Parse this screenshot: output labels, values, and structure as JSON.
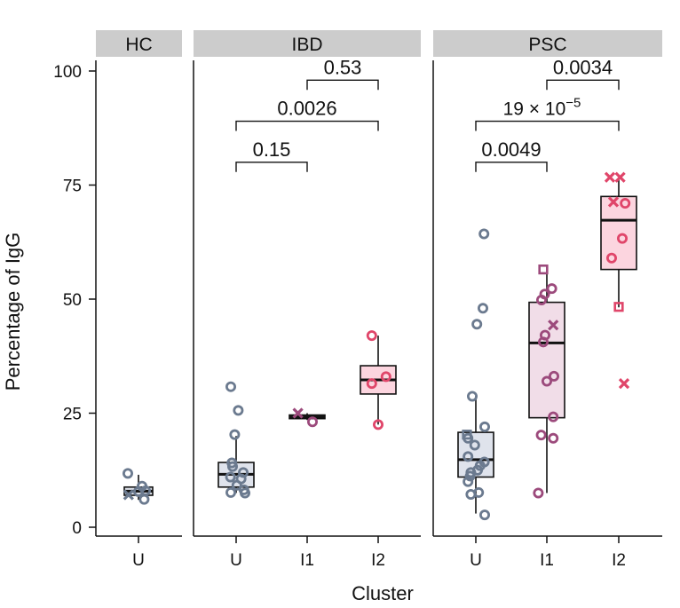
{
  "chart_data": {
    "type": "box",
    "ylabel": "Percentage of IgG",
    "xlabel": "Cluster",
    "ylim": [
      0,
      100
    ],
    "yticks": [
      0,
      25,
      50,
      75,
      100
    ],
    "colors": {
      "U": "#6b7a8f",
      "I1": "#9c4a7c",
      "I2": "#e0466a",
      "U_fill": "#dfe3ec",
      "I1_fill": "#f1dde8",
      "I2_fill": "#fcd5df",
      "strip": "#cccccc"
    },
    "panels": [
      {
        "name": "HC",
        "groups": [
          {
            "cluster": "U",
            "box": {
              "q1": 7,
              "median": 7.9,
              "q3": 8.8,
              "wlow": 6,
              "whigh": 11.5
            },
            "points": [
              {
                "y": 11.8,
                "m": "o",
                "j": -0.3
              },
              {
                "y": 7.1,
                "m": "x",
                "j": -0.28
              },
              {
                "y": 6.1,
                "m": "o",
                "j": 0.16
              },
              {
                "y": 8.0,
                "m": "o",
                "j": 0.2
              },
              {
                "y": 9.0,
                "m": "o",
                "j": 0.1
              },
              {
                "y": 7.8,
                "m": "o",
                "j": 0.0
              }
            ]
          }
        ],
        "brackets": []
      },
      {
        "name": "IBD",
        "groups": [
          {
            "cluster": "U",
            "box": {
              "q1": 8.8,
              "median": 11.6,
              "q3": 14.2,
              "wlow": 7.5,
              "whigh": 20
            },
            "points": [
              {
                "y": 30.8,
                "m": "o",
                "j": -0.15
              },
              {
                "y": 25.6,
                "m": "o",
                "j": 0.06
              },
              {
                "y": 20.3,
                "m": "o",
                "j": -0.04
              },
              {
                "y": 14.1,
                "m": "o",
                "j": -0.12
              },
              {
                "y": 13.3,
                "m": "o",
                "j": -0.1
              },
              {
                "y": 12.0,
                "m": "o",
                "j": 0.2
              },
              {
                "y": 11.0,
                "m": "o",
                "j": -0.16
              },
              {
                "y": 10.6,
                "m": "o",
                "j": 0.14
              },
              {
                "y": 9.2,
                "m": "o",
                "j": 0.02
              },
              {
                "y": 8.2,
                "m": "o",
                "j": 0.22
              },
              {
                "y": 7.6,
                "m": "o",
                "j": -0.15
              },
              {
                "y": 7.5,
                "m": "o",
                "j": 0.25
              }
            ]
          },
          {
            "cluster": "I1",
            "box": {
              "q1": 23.8,
              "median": 24.2,
              "q3": 24.6,
              "wlow": 23.5,
              "whigh": 25
            },
            "points": [
              {
                "y": 25.0,
                "m": "x",
                "j": -0.26
              },
              {
                "y": 23.1,
                "m": "o",
                "j": 0.15
              }
            ]
          },
          {
            "cluster": "I2",
            "box": {
              "q1": 29.2,
              "median": 32.3,
              "q3": 35.4,
              "wlow": 22.5,
              "whigh": 42
            },
            "points": [
              {
                "y": 42.0,
                "m": "o",
                "j": -0.18
              },
              {
                "y": 33.0,
                "m": "o",
                "j": 0.22
              },
              {
                "y": 31.5,
                "m": "o",
                "j": -0.18
              },
              {
                "y": 22.5,
                "m": "o",
                "j": 0.0
              }
            ]
          }
        ],
        "brackets": [
          {
            "from": "U",
            "to": "I1",
            "y": 80,
            "label": "0.15"
          },
          {
            "from": "U",
            "to": "I2",
            "y": 89,
            "label": "0.0026"
          },
          {
            "from": "I1",
            "to": "I2",
            "y": 98,
            "label": "0.53"
          }
        ]
      },
      {
        "name": "PSC",
        "groups": [
          {
            "cluster": "U",
            "box": {
              "q1": 11,
              "median": 14.8,
              "q3": 20.8,
              "wlow": 3,
              "whigh": 28.8
            },
            "points": [
              {
                "y": 64.3,
                "m": "o",
                "j": 0.23
              },
              {
                "y": 48.0,
                "m": "o",
                "j": 0.2
              },
              {
                "y": 44.5,
                "m": "o",
                "j": 0.03
              },
              {
                "y": 28.7,
                "m": "o",
                "j": -0.1
              },
              {
                "y": 22.0,
                "m": "o",
                "j": 0.25
              },
              {
                "y": 20.3,
                "m": "s",
                "j": -0.25
              },
              {
                "y": 19.5,
                "m": "o",
                "j": -0.22
              },
              {
                "y": 18.0,
                "m": "o",
                "j": -0.03
              },
              {
                "y": 15.5,
                "m": "o",
                "j": -0.22
              },
              {
                "y": 14.3,
                "m": "o",
                "j": 0.24
              },
              {
                "y": 13.5,
                "m": "o",
                "j": 0.12
              },
              {
                "y": 12.5,
                "m": "o",
                "j": 0.05
              },
              {
                "y": 12.0,
                "m": "o",
                "j": -0.14
              },
              {
                "y": 11.2,
                "m": "o",
                "j": -0.16
              },
              {
                "y": 10.0,
                "m": "o",
                "j": -0.22
              },
              {
                "y": 7.6,
                "m": "o",
                "j": 0.08
              },
              {
                "y": 7.2,
                "m": "o",
                "j": -0.14
              },
              {
                "y": 2.7,
                "m": "o",
                "j": 0.25
              }
            ]
          },
          {
            "cluster": "I1",
            "box": {
              "q1": 24,
              "median": 40.4,
              "q3": 49.3,
              "wlow": 7.5,
              "whigh": 56
            },
            "points": [
              {
                "y": 56.5,
                "m": "s",
                "j": -0.1
              },
              {
                "y": 52.3,
                "m": "o",
                "j": 0.14
              },
              {
                "y": 51.1,
                "m": "o",
                "j": -0.06
              },
              {
                "y": 49.8,
                "m": "o",
                "j": -0.15
              },
              {
                "y": 44.3,
                "m": "x",
                "j": 0.18
              },
              {
                "y": 42.1,
                "m": "o",
                "j": -0.05
              },
              {
                "y": 40.6,
                "m": "o",
                "j": -0.1
              },
              {
                "y": 33.1,
                "m": "o",
                "j": 0.2
              },
              {
                "y": 32.0,
                "m": "o",
                "j": 0.0
              },
              {
                "y": 24.2,
                "m": "o",
                "j": 0.18
              },
              {
                "y": 20.2,
                "m": "o",
                "j": -0.16
              },
              {
                "y": 19.5,
                "m": "o",
                "j": 0.18
              },
              {
                "y": 7.5,
                "m": "o",
                "j": -0.24
              }
            ]
          },
          {
            "cluster": "I2",
            "box": {
              "q1": 56.5,
              "median": 67.3,
              "q3": 72.5,
              "wlow": 48.2,
              "whigh": 76.5
            },
            "points": [
              {
                "y": 76.7,
                "m": "x",
                "j": -0.25
              },
              {
                "y": 76.7,
                "m": "x",
                "j": 0.04
              },
              {
                "y": 71.3,
                "m": "x",
                "j": -0.15
              },
              {
                "y": 71.0,
                "m": "o",
                "j": 0.18
              },
              {
                "y": 63.3,
                "m": "o",
                "j": 0.1
              },
              {
                "y": 59.0,
                "m": "o",
                "j": -0.2
              },
              {
                "y": 48.3,
                "m": "s",
                "j": 0.0
              },
              {
                "y": 31.5,
                "m": "x",
                "j": 0.15
              }
            ]
          }
        ],
        "brackets": [
          {
            "from": "U",
            "to": "I1",
            "y": 80,
            "label": "0.0049"
          },
          {
            "from": "U",
            "to": "I2",
            "y": 89,
            "label": "19 × 10",
            "sup": "−5"
          },
          {
            "from": "I1",
            "to": "I2",
            "y": 98,
            "label": "0.0034"
          }
        ]
      }
    ]
  }
}
